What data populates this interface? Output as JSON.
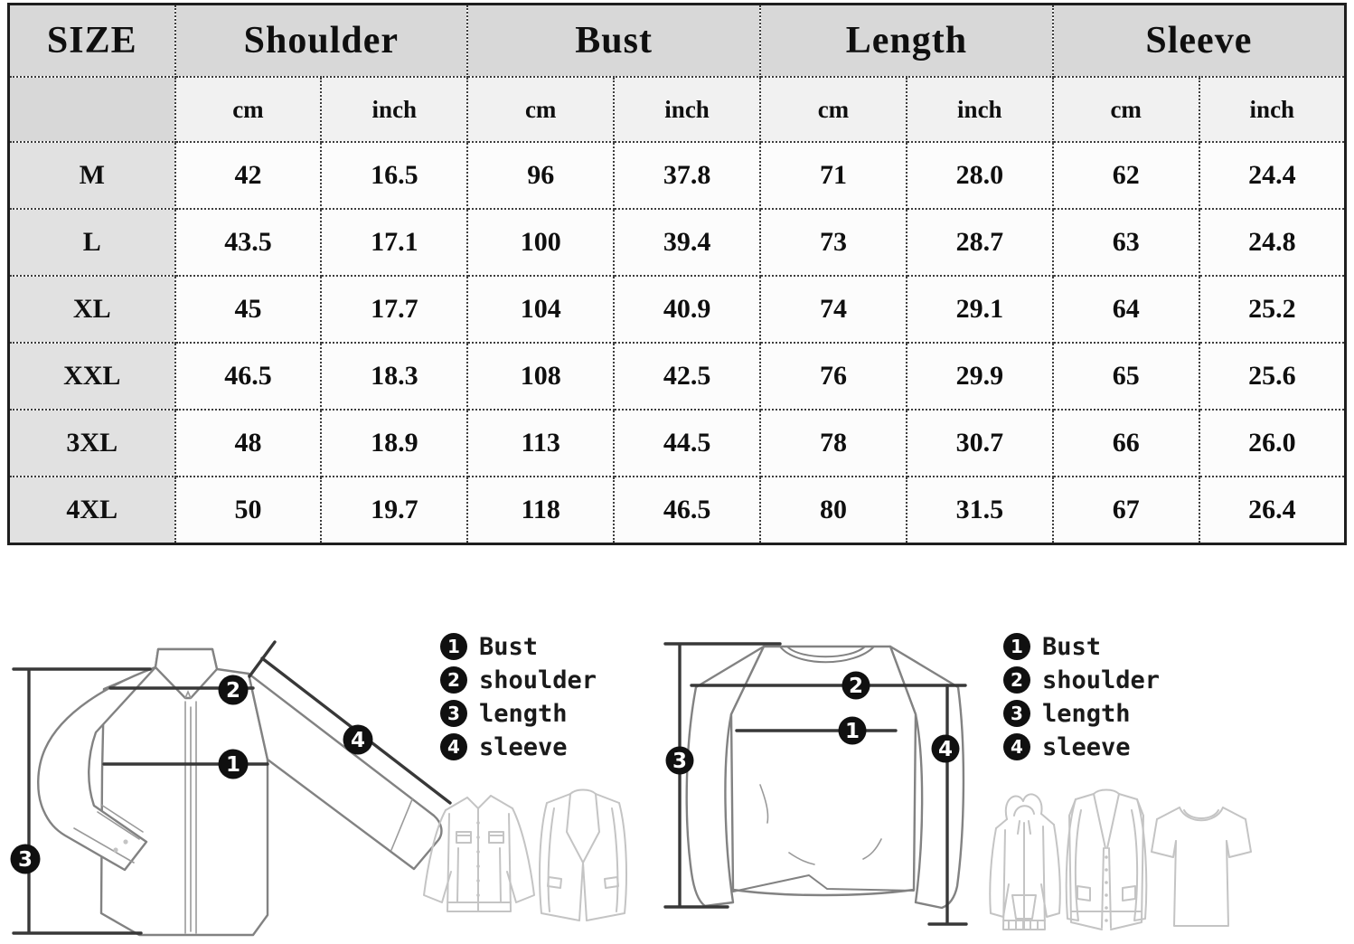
{
  "table": {
    "title_col": "SIZE",
    "measure_cols": [
      "Shoulder",
      "Bust",
      "Length",
      "Sleeve"
    ],
    "units": {
      "cm": "cm",
      "inch": "inch"
    },
    "rows": [
      {
        "size": "M",
        "values": [
          "42",
          "16.5",
          "96",
          "37.8",
          "71",
          "28.0",
          "62",
          "24.4"
        ]
      },
      {
        "size": "L",
        "values": [
          "43.5",
          "17.1",
          "100",
          "39.4",
          "73",
          "28.7",
          "63",
          "24.8"
        ]
      },
      {
        "size": "XL",
        "values": [
          "45",
          "17.7",
          "104",
          "40.9",
          "74",
          "29.1",
          "64",
          "25.2"
        ]
      },
      {
        "size": "XXL",
        "values": [
          "46.5",
          "18.3",
          "108",
          "42.5",
          "76",
          "29.9",
          "65",
          "25.6"
        ]
      },
      {
        "size": "3XL",
        "values": [
          "48",
          "18.9",
          "113",
          "44.5",
          "78",
          "30.7",
          "66",
          "26.0"
        ]
      },
      {
        "size": "4XL",
        "values": [
          "50",
          "19.7",
          "118",
          "46.5",
          "80",
          "31.5",
          "67",
          "26.4"
        ]
      }
    ]
  },
  "legend": {
    "items": [
      {
        "num": "1",
        "label": "Bust"
      },
      {
        "num": "2",
        "label": "shoulder"
      },
      {
        "num": "3",
        "label": "length"
      },
      {
        "num": "4",
        "label": "sleeve"
      }
    ]
  },
  "icons": {
    "left": [
      "jacket-icon",
      "blazer-icon"
    ],
    "right": [
      "hoodie-icon",
      "cardigan-icon",
      "tshirt-icon"
    ]
  },
  "colors": {
    "header_bg": "#d8d8d8",
    "subheader_bg": "#f1f1f1",
    "size_col_bg": "#e1e1e1",
    "cell_bg": "#fcfcfc",
    "border": "#1e1e1e",
    "badge": "#101010",
    "garment_outline": "#828282",
    "sketch_light": "#c4c4c4"
  }
}
